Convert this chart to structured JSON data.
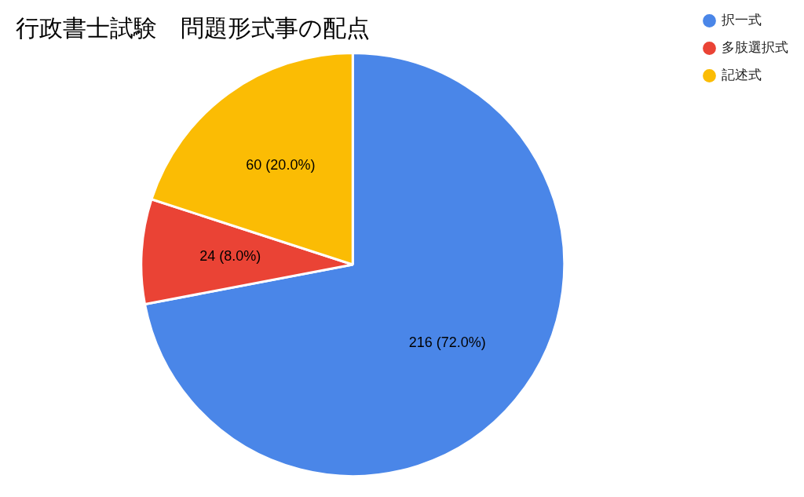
{
  "chart_data": {
    "type": "pie",
    "title": "行政書士試験　問題形式事の配点",
    "categories": [
      "択一式",
      "多肢選択式",
      "記述式"
    ],
    "values": [
      216,
      24,
      60
    ],
    "colors": [
      "#4a86e8",
      "#ea4335",
      "#fbbc04"
    ],
    "value_labels": [
      "216 (72.0%)",
      "24 (8.0%)",
      "60 (20.0%)"
    ],
    "legend": "top right"
  }
}
